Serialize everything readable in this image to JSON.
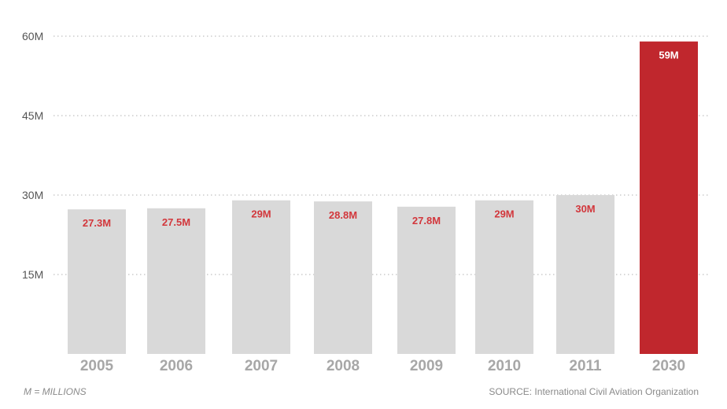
{
  "chart_data": {
    "type": "bar",
    "categories": [
      "2005",
      "2006",
      "2007",
      "2008",
      "2009",
      "2010",
      "2011",
      "2030"
    ],
    "values": [
      27.3,
      27.5,
      29,
      28.8,
      27.8,
      29,
      30,
      59
    ],
    "data_labels": [
      "27.3M",
      "27.5M",
      "29M",
      "28.8M",
      "27.8M",
      "29M",
      "30M",
      "59M"
    ],
    "ylim": [
      0,
      60
    ],
    "yticks": [
      15,
      30,
      45,
      60
    ],
    "ytick_labels": [
      "15M",
      "30M",
      "45M",
      "60M"
    ],
    "grid": "horizontal-dotted",
    "colors": {
      "bar_default": "#d9d9d9",
      "bar_highlight": "#c0272d",
      "label_default": "#d2373c",
      "label_highlight": "#ffffff",
      "grid": "#cccccc"
    },
    "highlight_index": 7
  },
  "footer": {
    "note": "M = MILLIONS",
    "source": "SOURCE: International Civil Aviation Organization"
  }
}
